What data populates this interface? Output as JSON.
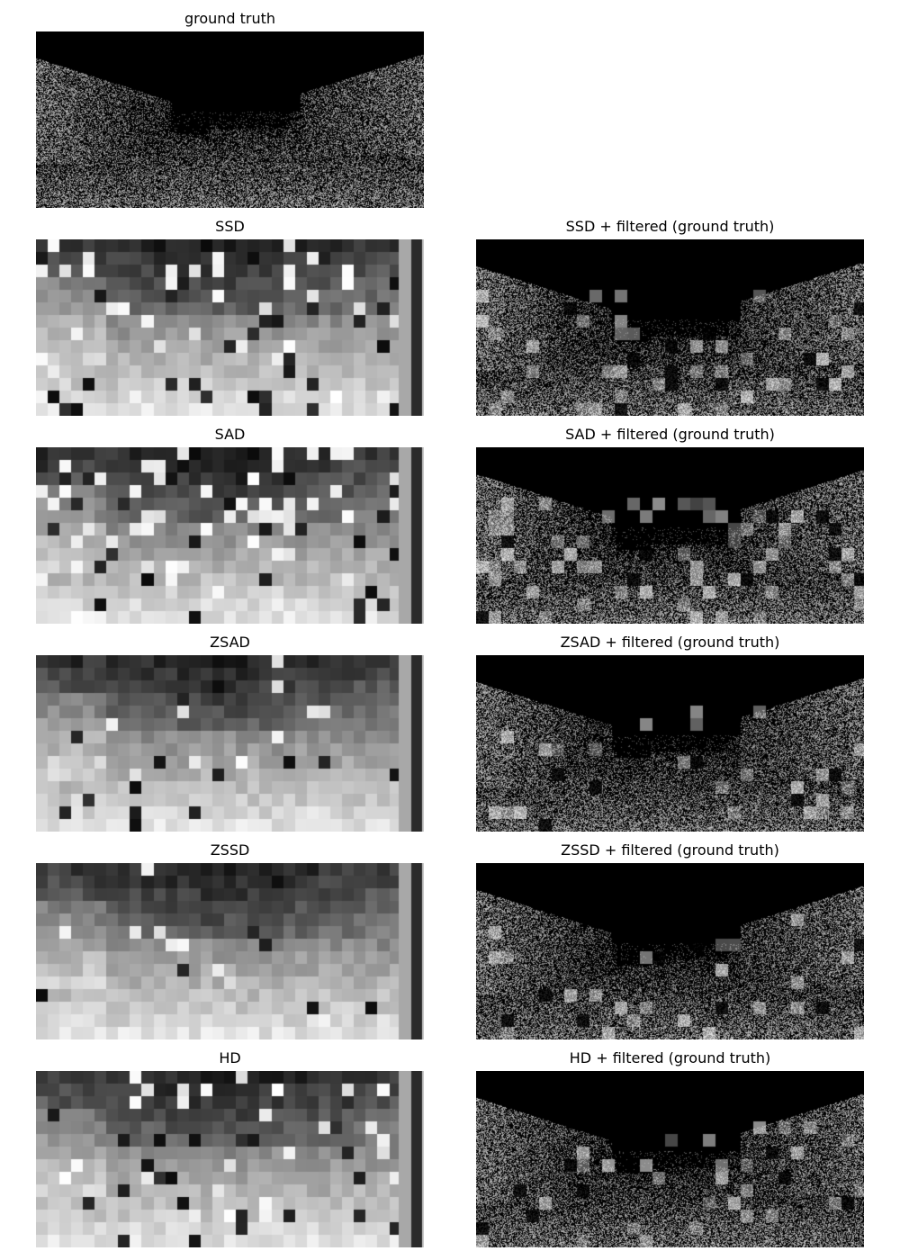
{
  "panels": {
    "ground_truth": {
      "title": "ground truth"
    },
    "ssd": {
      "title": "SSD"
    },
    "ssd_filtered": {
      "title": "SSD + filtered (ground truth)"
    },
    "sad": {
      "title": "SAD"
    },
    "sad_filtered": {
      "title": "SAD + filtered (ground truth)"
    },
    "zsad": {
      "title": "ZSAD"
    },
    "zsad_filtered": {
      "title": "ZSAD + filtered (ground truth)"
    },
    "zssd": {
      "title": "ZSSD"
    },
    "zssd_filtered": {
      "title": "ZSSD + filtered (ground truth)"
    },
    "hd": {
      "title": "HD"
    },
    "hd_filtered": {
      "title": "HD + filtered (ground truth)"
    }
  },
  "colors": {
    "background": "#ffffff",
    "image_base": "#000000",
    "text": "#000000"
  }
}
